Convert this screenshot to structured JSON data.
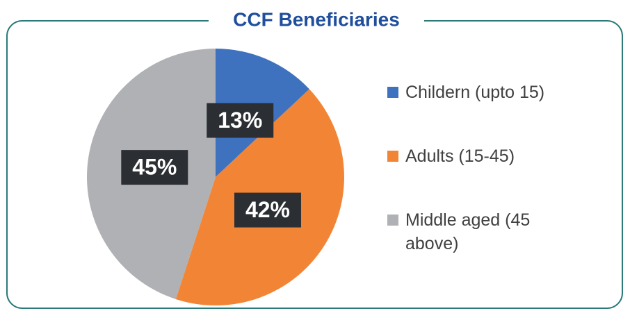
{
  "chart_data": {
    "type": "pie",
    "title": "CCF Beneficiaries",
    "categories": [
      "Childern (upto 15)",
      "Adults (15-45)",
      "Middle aged (45 above)"
    ],
    "values": [
      13,
      42,
      45
    ],
    "value_labels": [
      "13%",
      "42%",
      "45%"
    ],
    "colors": [
      "#3f72be",
      "#f28535",
      "#b0b1b4"
    ],
    "legend": "right"
  }
}
